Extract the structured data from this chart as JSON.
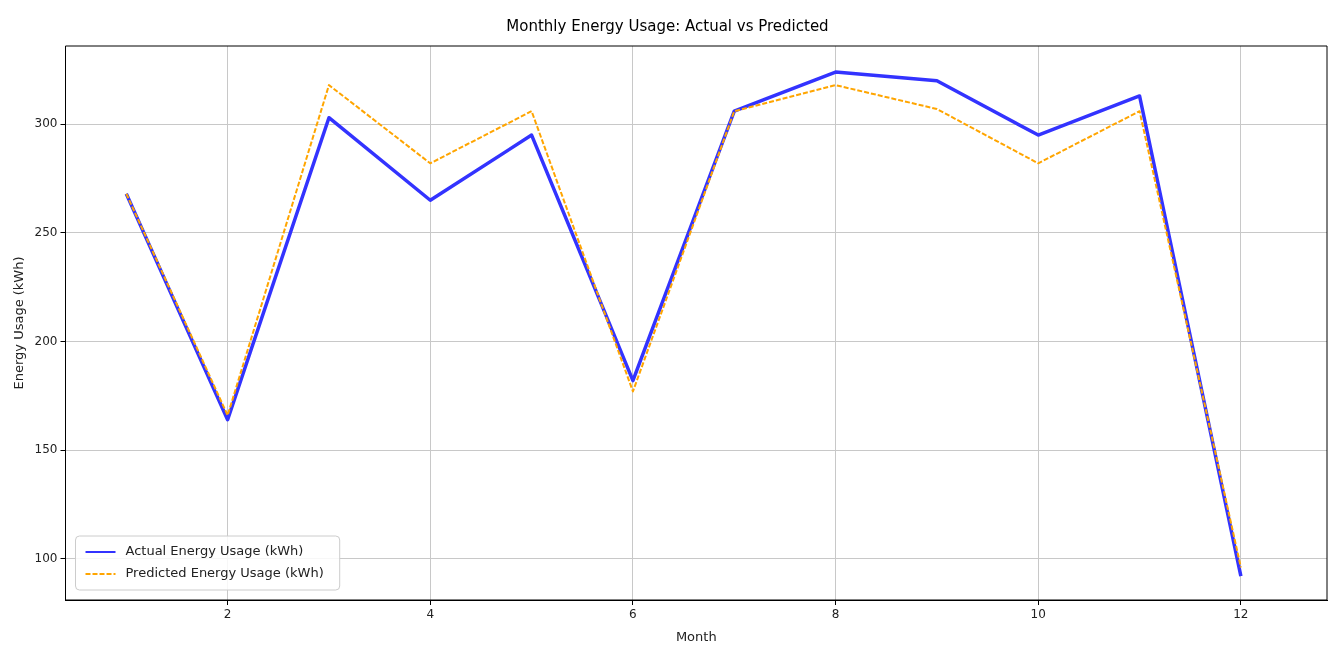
{
  "chart_data": {
    "type": "line",
    "title": "Monthly Energy Usage: Actual vs Predicted",
    "xlabel": "Month",
    "ylabel": "Energy Usage (kWh)",
    "x": [
      1,
      2,
      3,
      4,
      5,
      6,
      7,
      8,
      9,
      10,
      11,
      12
    ],
    "series": [
      {
        "name": "Actual Energy Usage (kWh)",
        "color": "#3333ff",
        "line_style": "solid",
        "values": [
          268,
          164,
          303,
          265,
          295,
          182,
          306,
          324,
          320,
          295,
          313,
          92
        ]
      },
      {
        "name": "Predicted Energy Usage (kWh)",
        "color": "#ffa500",
        "line_style": "dashed",
        "values": [
          268,
          166,
          318,
          282,
          306,
          177,
          306,
          318,
          307,
          282,
          306,
          96
        ]
      }
    ],
    "xlim": [
      0.4,
      12.85
    ],
    "xticks": [
      2,
      4,
      6,
      8,
      10,
      12
    ],
    "ylim": [
      81,
      336
    ],
    "yticks": [
      100,
      150,
      200,
      250,
      300
    ],
    "grid": true,
    "legend": "bottom left",
    "marker": "none"
  }
}
